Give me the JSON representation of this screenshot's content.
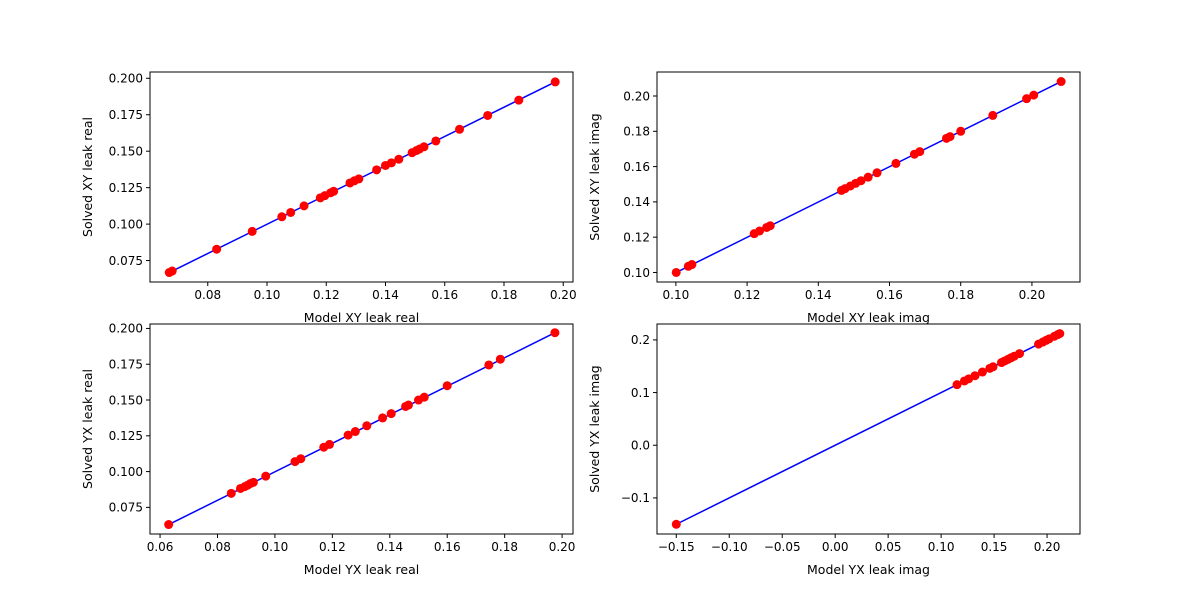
{
  "chart_data": [
    {
      "type": "scatter",
      "xlabel": "Model XY leak real",
      "ylabel": "Solved XY leak real",
      "xlim": [
        0.0605,
        0.2033
      ],
      "ylim": [
        0.0603,
        0.2043
      ],
      "xticks": [
        "0.08",
        "0.10",
        "0.12",
        "0.14",
        "0.16",
        "0.18",
        "0.20"
      ],
      "yticks": [
        "0.075",
        "0.100",
        "0.125",
        "0.150",
        "0.175",
        "0.200"
      ],
      "line": {
        "x": [
          0.067,
          0.1973
        ],
        "y": [
          0.0668,
          0.1975
        ]
      },
      "points": {
        "x": [
          0.067,
          0.068,
          0.083,
          0.095,
          0.105,
          0.108,
          0.1125,
          0.118,
          0.1195,
          0.1215,
          0.1225,
          0.128,
          0.1295,
          0.131,
          0.137,
          0.14,
          0.142,
          0.1445,
          0.149,
          0.1505,
          0.1515,
          0.153,
          0.157,
          0.165,
          0.1745,
          0.185,
          0.1973
        ],
        "y": [
          0.0668,
          0.0678,
          0.0828,
          0.095,
          0.105,
          0.108,
          0.1125,
          0.118,
          0.1195,
          0.1215,
          0.1225,
          0.1282,
          0.1297,
          0.131,
          0.1372,
          0.1402,
          0.142,
          0.1445,
          0.149,
          0.1505,
          0.1515,
          0.153,
          0.157,
          0.165,
          0.1745,
          0.185,
          0.1975
        ]
      },
      "colors": {
        "line": "#0000ff",
        "marker": "#ff0000"
      }
    },
    {
      "type": "scatter",
      "xlabel": "Model XY leak imag",
      "ylabel": "Solved XY leak imag",
      "xlim": [
        0.0947,
        0.2135
      ],
      "ylim": [
        0.0946,
        0.2136
      ],
      "xticks": [
        "0.10",
        "0.12",
        "0.14",
        "0.16",
        "0.18",
        "0.20"
      ],
      "yticks": [
        "0.10",
        "0.12",
        "0.14",
        "0.16",
        "0.18",
        "0.20"
      ],
      "line": {
        "x": [
          0.1001,
          0.2082
        ],
        "y": [
          0.1,
          0.2082
        ]
      },
      "points": {
        "x": [
          0.1001,
          0.1035,
          0.1045,
          0.122,
          0.1235,
          0.1255,
          0.1265,
          0.1465,
          0.1475,
          0.149,
          0.1505,
          0.152,
          0.154,
          0.1565,
          0.1618,
          0.167,
          0.1685,
          0.176,
          0.177,
          0.18,
          0.189,
          0.1985,
          0.2005,
          0.2082
        ],
        "y": [
          0.1,
          0.1035,
          0.1045,
          0.122,
          0.1235,
          0.1255,
          0.1265,
          0.1465,
          0.1475,
          0.149,
          0.1505,
          0.152,
          0.154,
          0.1565,
          0.1618,
          0.167,
          0.1685,
          0.176,
          0.177,
          0.18,
          0.189,
          0.1985,
          0.2005,
          0.2082
        ]
      },
      "colors": {
        "line": "#0000ff",
        "marker": "#ff0000"
      }
    },
    {
      "type": "scatter",
      "xlabel": "Model YX leak real",
      "ylabel": "Solved YX leak real",
      "xlim": [
        0.0565,
        0.2038
      ],
      "ylim": [
        0.0564,
        0.2031
      ],
      "xticks": [
        "0.06",
        "0.08",
        "0.10",
        "0.12",
        "0.14",
        "0.16",
        "0.18",
        "0.20"
      ],
      "yticks": [
        "0.075",
        "0.100",
        "0.125",
        "0.150",
        "0.175",
        "0.200"
      ],
      "line": {
        "x": [
          0.063,
          0.1975
        ],
        "y": [
          0.063,
          0.197
        ]
      },
      "points": {
        "x": [
          0.063,
          0.0848,
          0.088,
          0.0895,
          0.0905,
          0.0915,
          0.0925,
          0.0968,
          0.107,
          0.109,
          0.117,
          0.119,
          0.1255,
          0.128,
          0.132,
          0.1375,
          0.1405,
          0.1455,
          0.1465,
          0.15,
          0.152,
          0.16,
          0.1745,
          0.1785,
          0.1975
        ],
        "y": [
          0.063,
          0.0848,
          0.0882,
          0.0895,
          0.0905,
          0.0917,
          0.0925,
          0.0968,
          0.107,
          0.109,
          0.117,
          0.119,
          0.1255,
          0.128,
          0.132,
          0.1375,
          0.1405,
          0.1455,
          0.1465,
          0.15,
          0.152,
          0.16,
          0.1745,
          0.1785,
          0.197
        ]
      },
      "colors": {
        "line": "#0000ff",
        "marker": "#ff0000"
      }
    },
    {
      "type": "scatter",
      "xlabel": "Model YX leak imag",
      "ylabel": "Solved YX leak imag",
      "xlim": [
        -0.1682,
        0.2311
      ],
      "ylim": [
        -0.1685,
        0.2302
      ],
      "xticks": [
        "−0.15",
        "−0.10",
        "−0.05",
        "0.00",
        "0.05",
        "0.10",
        "0.15",
        "0.20"
      ],
      "xtick_values": [
        -0.15,
        -0.1,
        -0.05,
        0.0,
        0.05,
        0.1,
        0.15,
        0.2
      ],
      "yticks": [
        "−0.1",
        "0.0",
        "0.1",
        "0.2"
      ],
      "ytick_values": [
        -0.1,
        0.0,
        0.1,
        0.2
      ],
      "line": {
        "x": [
          -0.15,
          0.212
        ],
        "y": [
          -0.15,
          0.212
        ]
      },
      "points": {
        "x": [
          -0.15,
          0.115,
          0.122,
          0.126,
          0.132,
          0.139,
          0.146,
          0.149,
          0.157,
          0.16,
          0.163,
          0.166,
          0.169,
          0.174,
          0.192,
          0.196,
          0.199,
          0.202,
          0.207,
          0.21,
          0.212
        ],
        "y": [
          -0.15,
          0.115,
          0.122,
          0.126,
          0.132,
          0.139,
          0.146,
          0.149,
          0.157,
          0.16,
          0.163,
          0.166,
          0.169,
          0.174,
          0.192,
          0.196,
          0.199,
          0.202,
          0.207,
          0.21,
          0.212
        ]
      },
      "colors": {
        "line": "#0000ff",
        "marker": "#ff0000"
      }
    }
  ]
}
